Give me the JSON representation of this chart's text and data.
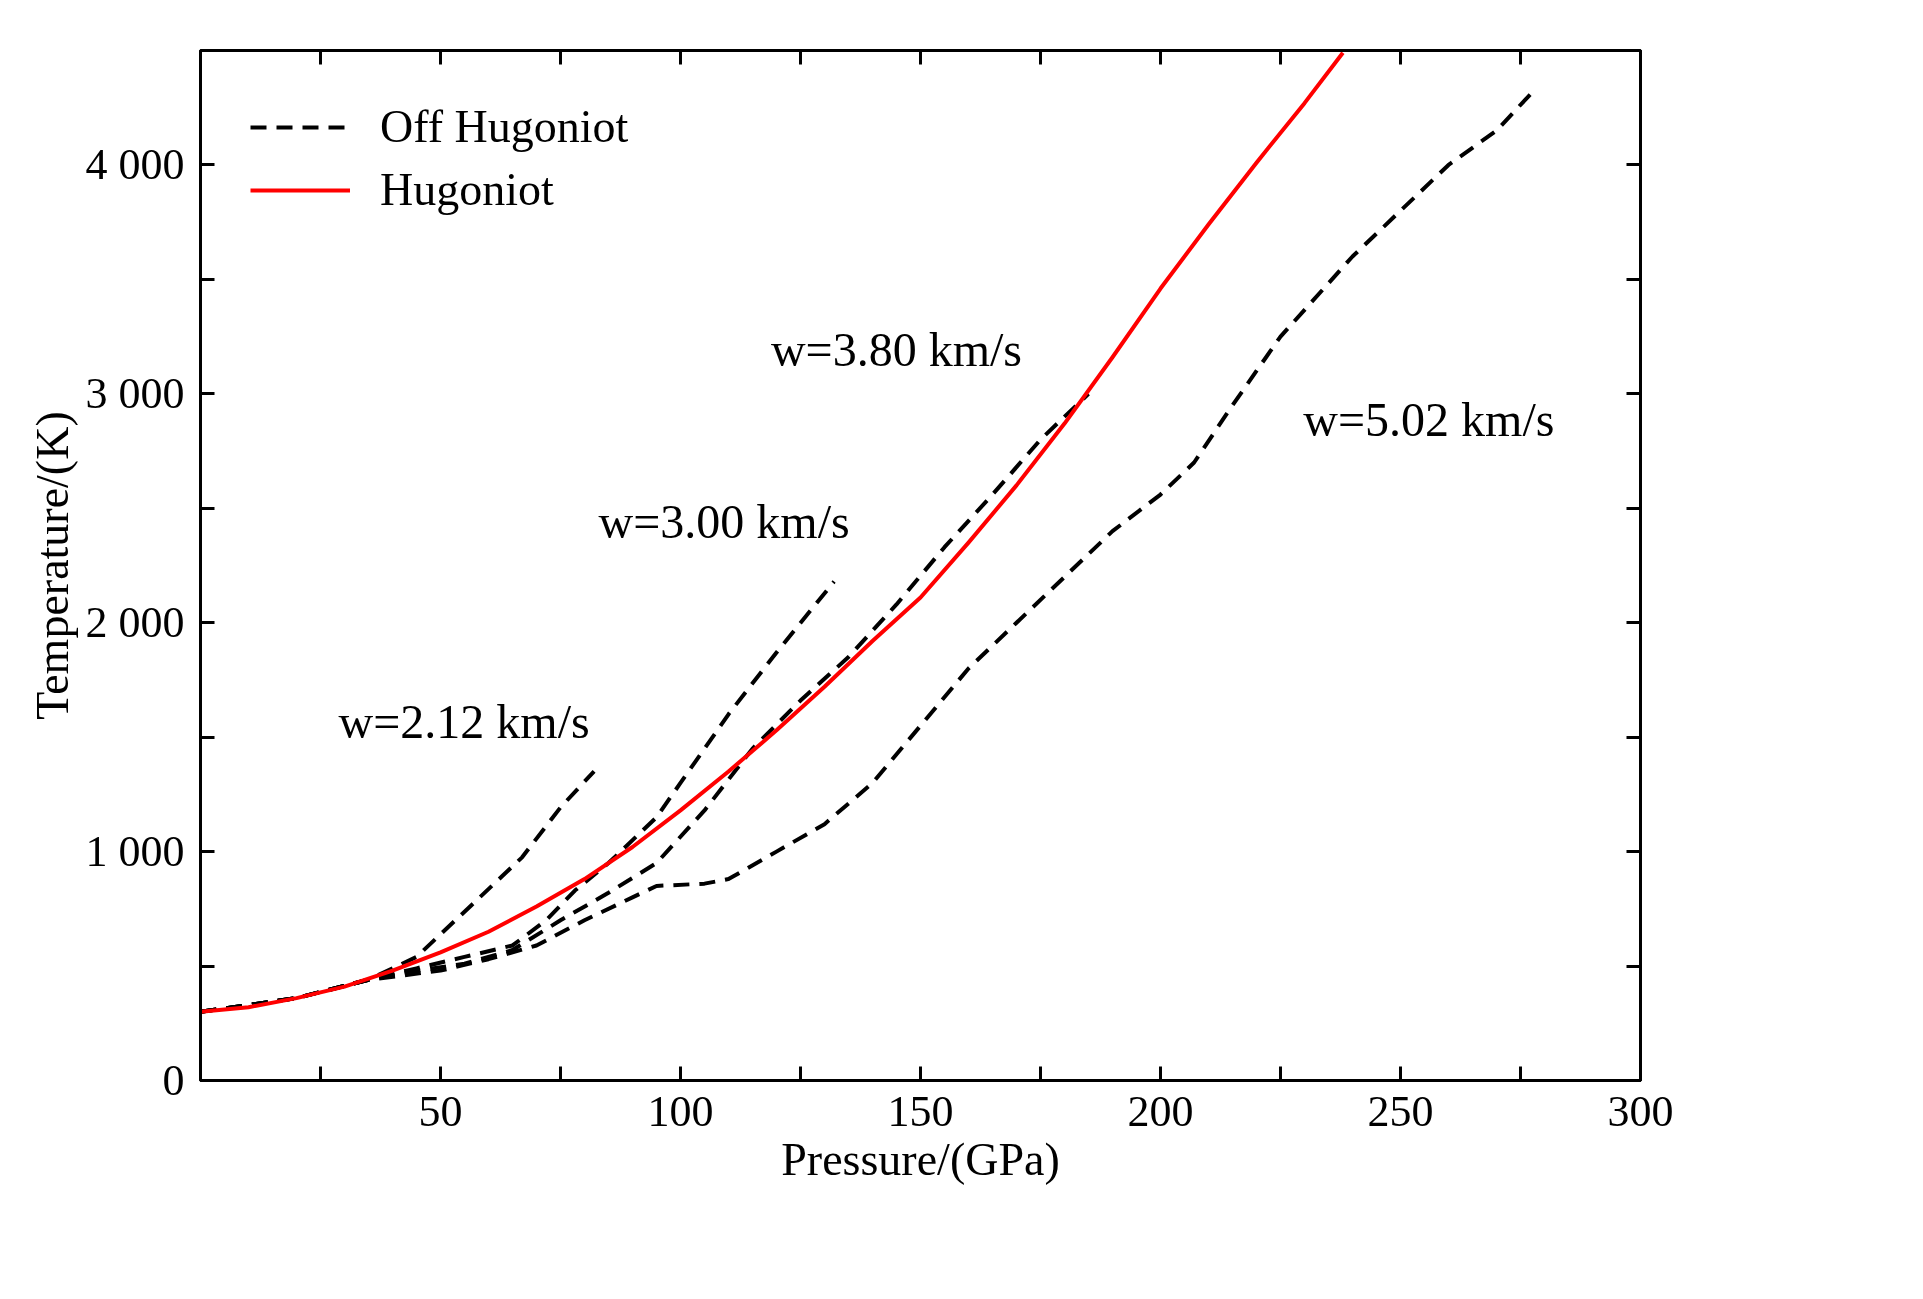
{
  "chart_data": {
    "type": "line",
    "xlabel": "Pressure/(GPa)",
    "ylabel": "Temperature/(K)",
    "xlim": [
      0,
      300
    ],
    "ylim": [
      0,
      4500
    ],
    "xticks": [
      {
        "value": 25,
        "label": null
      },
      50,
      {
        "value": 75,
        "label": null
      },
      100,
      {
        "value": 125,
        "label": null
      },
      150,
      {
        "value": 175,
        "label": null
      },
      200,
      {
        "value": 225,
        "label": null
      },
      250,
      {
        "value": 275,
        "label": null
      },
      300
    ],
    "yticks": [
      0,
      {
        "value": 500,
        "label": null
      },
      {
        "value": 1000,
        "label": "1 000"
      },
      {
        "value": 1500,
        "label": null
      },
      {
        "value": 2000,
        "label": "2 000"
      },
      {
        "value": 2500,
        "label": null
      },
      {
        "value": 3000,
        "label": "3 000"
      },
      {
        "value": 3500,
        "label": null
      },
      {
        "value": 4000,
        "label": "4 000"
      }
    ],
    "grid": false,
    "legend": "top left",
    "marker": "none",
    "series": [
      {
        "name": "Off Hugoniot",
        "color": "#000000",
        "line_style": "dashed",
        "x": [
          0,
          20,
          35,
          45,
          56,
          67,
          75,
          82
        ],
        "values": [
          300,
          360,
          440,
          540,
          757,
          975,
          1193,
          1351
        ]
      },
      {
        "color": "#000000",
        "line_style": "dashed",
        "x": [
          0,
          20,
          35,
          45,
          55,
          65,
          72,
          78,
          85,
          95,
          100,
          110,
          120,
          132
        ],
        "values": [
          300,
          360,
          440,
          490,
          540,
          590,
          700,
          830,
          950,
          1150,
          1300,
          1600,
          1870,
          2180
        ]
      },
      {
        "color": "#000000",
        "line_style": "dashed",
        "x": [
          0,
          20,
          35,
          45,
          55,
          65,
          75,
          85,
          95,
          105,
          115,
          125,
          135,
          145,
          155,
          165,
          175,
          185
        ],
        "values": [
          300,
          360,
          440,
          480,
          510,
          570,
          700,
          820,
          950,
          1180,
          1450,
          1660,
          1850,
          2080,
          2330,
          2560,
          2800,
          3000
        ]
      },
      {
        "color": "#000000",
        "line_style": "dashed",
        "x": [
          0,
          20,
          35,
          50,
          60,
          70,
          80,
          90,
          95,
          105,
          110,
          120,
          130,
          140,
          150,
          160,
          170,
          180,
          190,
          200,
          207,
          215,
          225,
          240,
          250,
          260,
          270,
          278
        ],
        "values": [
          300,
          360,
          440,
          480,
          530,
          590,
          700,
          800,
          850,
          860,
          880,
          1000,
          1120,
          1300,
          1550,
          1800,
          2000,
          2200,
          2400,
          2560,
          2700,
          2950,
          3250,
          3600,
          3800,
          4000,
          4150,
          4330
        ]
      },
      {
        "name": "Hugoniot",
        "color": "#ff0000",
        "line_style": "solid",
        "x": [
          0,
          10,
          20,
          30,
          40,
          50,
          60,
          70,
          80,
          90,
          100,
          110,
          120,
          130,
          140,
          150,
          160,
          170,
          180,
          190,
          200,
          210,
          220,
          230,
          238
        ],
        "values": [
          300,
          320,
          360,
          410,
          480,
          560,
          650,
          760,
          880,
          1020,
          1180,
          1350,
          1530,
          1720,
          1920,
          2110,
          2350,
          2600,
          2870,
          3160,
          3460,
          3740,
          4010,
          4270,
          4490
        ]
      }
    ],
    "annotations": [
      "w=2.12 km/s",
      "w=3.00 km/s",
      "w=3.80 km/s",
      "w=5.02 km/s"
    ]
  }
}
